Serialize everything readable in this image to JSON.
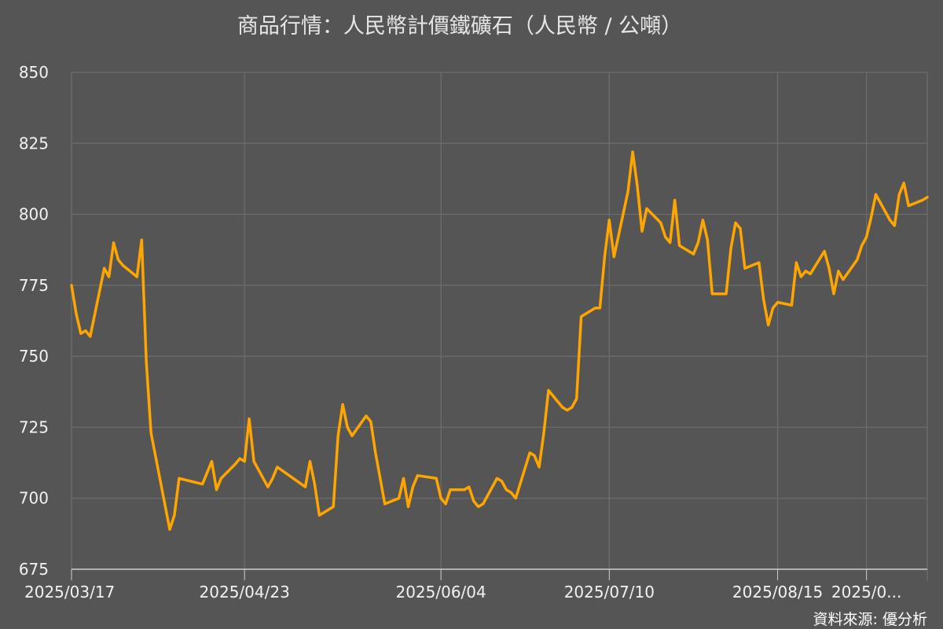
{
  "chart_data": {
    "type": "line",
    "title": "商品行情：人民幣計價鐵礦石（人民幣 / 公噸）",
    "source": "資料來源: 優分析",
    "ylim": [
      675,
      850
    ],
    "y_ticks": [
      675,
      700,
      725,
      750,
      775,
      800,
      825,
      850
    ],
    "x_range": [
      "2025-03-17",
      "2025-09-16"
    ],
    "x_ticks": [
      {
        "date": "2025-03-17",
        "label": "2025/03/17"
      },
      {
        "date": "2025-04-23",
        "label": "2025/04/23"
      },
      {
        "date": "2025-06-04",
        "label": "2025/06/04"
      },
      {
        "date": "2025-07-10",
        "label": "2025/07/10"
      },
      {
        "date": "2025-08-15",
        "label": "2025/08/15"
      },
      {
        "date": "2025-09-03",
        "label": "2025/0..."
      }
    ],
    "grid": true,
    "line_color": "#ffa500",
    "series": [
      {
        "x": [
          "2025-03-17",
          "2025-03-18",
          "2025-03-19",
          "2025-03-20",
          "2025-03-21",
          "2025-03-24",
          "2025-03-25",
          "2025-03-26",
          "2025-03-27",
          "2025-03-28",
          "2025-03-31",
          "2025-04-01",
          "2025-04-02",
          "2025-04-03",
          "2025-04-07",
          "2025-04-08",
          "2025-04-09",
          "2025-04-14",
          "2025-04-15",
          "2025-04-16",
          "2025-04-17",
          "2025-04-18",
          "2025-04-21",
          "2025-04-22",
          "2025-04-23",
          "2025-04-24",
          "2025-04-25",
          "2025-04-28",
          "2025-04-29",
          "2025-04-30",
          "2025-05-06",
          "2025-05-07",
          "2025-05-08",
          "2025-05-09",
          "2025-05-12",
          "2025-05-13",
          "2025-05-14",
          "2025-05-15",
          "2025-05-16",
          "2025-05-19",
          "2025-05-20",
          "2025-05-21",
          "2025-05-22",
          "2025-05-23",
          "2025-05-26",
          "2025-05-27",
          "2025-05-28",
          "2025-05-29",
          "2025-05-30",
          "2025-06-03",
          "2025-06-04",
          "2025-06-05",
          "2025-06-06",
          "2025-06-09",
          "2025-06-10",
          "2025-06-11",
          "2025-06-12",
          "2025-06-13",
          "2025-06-16",
          "2025-06-17",
          "2025-06-18",
          "2025-06-19",
          "2025-06-20",
          "2025-06-23",
          "2025-06-24",
          "2025-06-25",
          "2025-06-26",
          "2025-06-27",
          "2025-06-30",
          "2025-07-01",
          "2025-07-02",
          "2025-07-03",
          "2025-07-04",
          "2025-07-07",
          "2025-07-08",
          "2025-07-09",
          "2025-07-10",
          "2025-07-11",
          "2025-07-14",
          "2025-07-15",
          "2025-07-16",
          "2025-07-17",
          "2025-07-18",
          "2025-07-21",
          "2025-07-22",
          "2025-07-23",
          "2025-07-24",
          "2025-07-25",
          "2025-07-28",
          "2025-07-29",
          "2025-07-30",
          "2025-07-31",
          "2025-08-01",
          "2025-08-04",
          "2025-08-05",
          "2025-08-06",
          "2025-08-07",
          "2025-08-08",
          "2025-08-11",
          "2025-08-12",
          "2025-08-13",
          "2025-08-14",
          "2025-08-15",
          "2025-08-18",
          "2025-08-19",
          "2025-08-20",
          "2025-08-21",
          "2025-08-22",
          "2025-08-25",
          "2025-08-26",
          "2025-08-27",
          "2025-08-28",
          "2025-08-29",
          "2025-09-01",
          "2025-09-02",
          "2025-09-03",
          "2025-09-04",
          "2025-09-05",
          "2025-09-08",
          "2025-09-09",
          "2025-09-10",
          "2025-09-11",
          "2025-09-12",
          "2025-09-15",
          "2025-09-16"
        ],
        "values": [
          775,
          765,
          758,
          759,
          757,
          781,
          778,
          790,
          784,
          782,
          778,
          791,
          748,
          723,
          689,
          694,
          707,
          705,
          709,
          713,
          703,
          707,
          712,
          714,
          713,
          728,
          713,
          704,
          707,
          711,
          704,
          713,
          705,
          694,
          697,
          722,
          733,
          725,
          722,
          729,
          727,
          716,
          707,
          698,
          700,
          707,
          697,
          704,
          708,
          707,
          700,
          698,
          703,
          703,
          704,
          699,
          697,
          698,
          707,
          706,
          703,
          702,
          700,
          716,
          715,
          711,
          723,
          738,
          732,
          731,
          732,
          735,
          764,
          767,
          767,
          785,
          798,
          785,
          808,
          822,
          810,
          794,
          802,
          797,
          792,
          790,
          805,
          789,
          786,
          790,
          798,
          791,
          772,
          772,
          788,
          797,
          795,
          781,
          783,
          770,
          761,
          767,
          769,
          768,
          783,
          778,
          780,
          779,
          787,
          781,
          772,
          780,
          777,
          784,
          789,
          792,
          799,
          807,
          798,
          796,
          807,
          811,
          803,
          805,
          806
        ]
      }
    ]
  }
}
